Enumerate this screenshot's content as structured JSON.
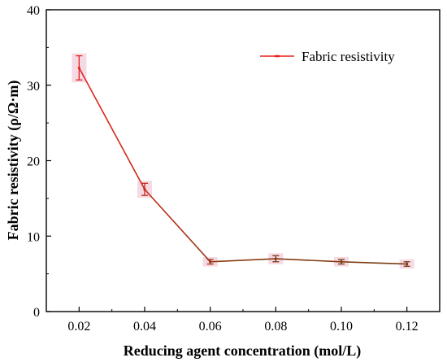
{
  "chart_data": {
    "type": "line",
    "xlabel": "Reducing agent concentration (mol/L)",
    "ylabel": "Fabric resistivity (ρ/Ω·m)",
    "xlim": [
      0.01,
      0.13
    ],
    "ylim": [
      0,
      40
    ],
    "x_ticks": [
      "0.02",
      "0.04",
      "0.06",
      "0.08",
      "0.10",
      "0.12"
    ],
    "y_ticks": [
      "0",
      "10",
      "20",
      "30",
      "40"
    ],
    "grid": false,
    "legend_position": "top-right",
    "series": [
      {
        "name": "Fabric resistivity",
        "x": [
          0.02,
          0.04,
          0.06,
          0.08,
          0.1,
          0.12
        ],
        "y": [
          32.3,
          16.2,
          6.6,
          7.0,
          6.6,
          6.3
        ],
        "error": [
          1.6,
          0.8,
          0.3,
          0.4,
          0.3,
          0.3
        ]
      }
    ],
    "colors": {
      "start": "#e8221a",
      "end": "#7a3a12",
      "errorbar_shadow": "#f1c9d8"
    }
  }
}
